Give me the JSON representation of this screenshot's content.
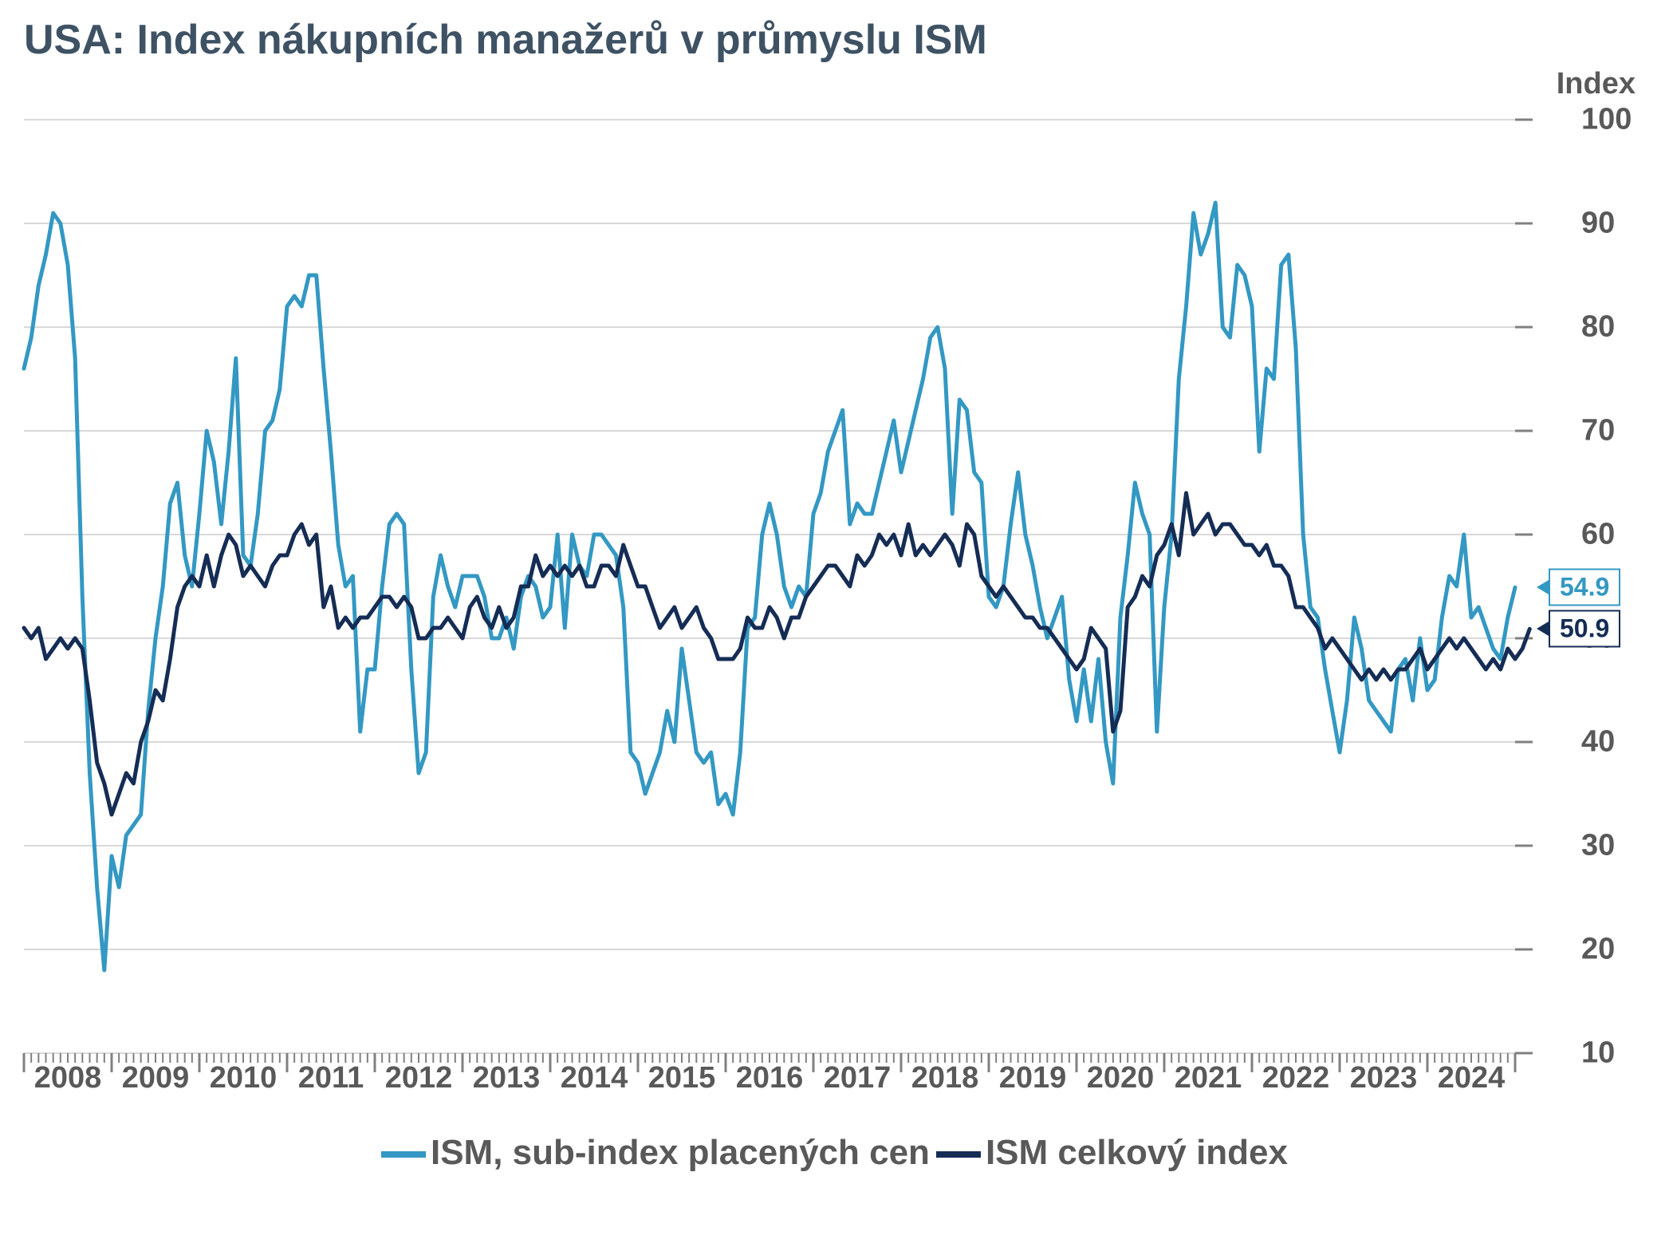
{
  "chart": {
    "type": "line",
    "title": "USA: Index nákupních manažerů v průmyslu ISM",
    "title_fontsize": 52,
    "title_color": "#3e5264",
    "y_axis_title": "Index",
    "label_color": "#595959",
    "label_fontsize": 38,
    "background_color": "#ffffff",
    "grid_color": "#d9d9d9",
    "axis_tick_color": "#808080",
    "ylim": [
      10,
      100
    ],
    "ytick_step": 10,
    "yticks": [
      10,
      20,
      30,
      40,
      50,
      60,
      70,
      80,
      90,
      100
    ],
    "xlim_years": [
      2008,
      2025
    ],
    "xticks": [
      2008,
      2009,
      2010,
      2011,
      2012,
      2013,
      2014,
      2015,
      2016,
      2017,
      2018,
      2019,
      2020,
      2021,
      2022,
      2023,
      2024
    ],
    "months_per_year": 12,
    "line_width": 5,
    "legend": {
      "items": [
        {
          "label": "ISM, sub-index placených cen",
          "color": "#3398c3"
        },
        {
          "label": "ISM celkový index",
          "color": "#152d55"
        }
      ],
      "fontsize": 44
    },
    "end_labels": [
      {
        "series": 0,
        "value": "54.9",
        "color": "#3398c3"
      },
      {
        "series": 1,
        "value": "50.9",
        "color": "#152d55"
      }
    ],
    "series": [
      {
        "name": "ISM, sub-index placených cen",
        "color": "#3398c3",
        "values": [
          76,
          79,
          84,
          87,
          91,
          90,
          86,
          77,
          54,
          37,
          26,
          18,
          29,
          26,
          31,
          32,
          33,
          43,
          50,
          55,
          63,
          65,
          58,
          55,
          62,
          70,
          67,
          61,
          68,
          77,
          58,
          57,
          62,
          70,
          71,
          74,
          82,
          83,
          82,
          85,
          85,
          76,
          68,
          59,
          55,
          56,
          41,
          47,
          47,
          55,
          61,
          62,
          61,
          47,
          37,
          39,
          54,
          58,
          55,
          53,
          56,
          56,
          56,
          54,
          50,
          50,
          52,
          49,
          54,
          56,
          55,
          52,
          53,
          60,
          51,
          60,
          57,
          56,
          60,
          60,
          59,
          58,
          53,
          39,
          38,
          35,
          37,
          39,
          43,
          40,
          49,
          44,
          39,
          38,
          39,
          34,
          35,
          33,
          39,
          51,
          52,
          60,
          63,
          60,
          55,
          53,
          55,
          54,
          62,
          64,
          68,
          70,
          72,
          61,
          63,
          62,
          62,
          65,
          68,
          71,
          66,
          69,
          72,
          75,
          79,
          80,
          76,
          62,
          73,
          72,
          66,
          65,
          54,
          53,
          55,
          61,
          66,
          60,
          57,
          53,
          50,
          52,
          54,
          46,
          42,
          47,
          42,
          48,
          40,
          36,
          52,
          58,
          65,
          62,
          60,
          41,
          53,
          60,
          75,
          82,
          91,
          87,
          89,
          92,
          80,
          79,
          86,
          85,
          82,
          68,
          76,
          75,
          86,
          87,
          78,
          60,
          53,
          52,
          47,
          43,
          39,
          44,
          52,
          49,
          44,
          43,
          42,
          41,
          47,
          48,
          44,
          50,
          45,
          46,
          52,
          56,
          55,
          60,
          52,
          53,
          51,
          49,
          48,
          52,
          54.9
        ]
      },
      {
        "name": "ISM celkový index",
        "color": "#152d55",
        "values": [
          51,
          50,
          51,
          48,
          49,
          50,
          49,
          50,
          49,
          44,
          38,
          36,
          33,
          35,
          37,
          36,
          40,
          42,
          45,
          44,
          48,
          53,
          55,
          56,
          55,
          58,
          55,
          58,
          60,
          59,
          56,
          57,
          56,
          55,
          57,
          58,
          58,
          60,
          61,
          59,
          60,
          53,
          55,
          51,
          52,
          51,
          52,
          52,
          53,
          54,
          54,
          53,
          54,
          53,
          50,
          50,
          51,
          51,
          52,
          51,
          50,
          53,
          54,
          52,
          51,
          53,
          51,
          52,
          55,
          55,
          58,
          56,
          57,
          56,
          57,
          56,
          57,
          55,
          55,
          57,
          57,
          56,
          59,
          57,
          55,
          55,
          53,
          51,
          52,
          53,
          51,
          52,
          53,
          51,
          50,
          48,
          48,
          48,
          49,
          52,
          51,
          51,
          53,
          52,
          50,
          52,
          52,
          54,
          55,
          56,
          57,
          57,
          56,
          55,
          58,
          57,
          58,
          60,
          59,
          60,
          58,
          61,
          58,
          59,
          58,
          59,
          60,
          59,
          57,
          61,
          60,
          56,
          55,
          54,
          55,
          54,
          53,
          52,
          52,
          51,
          51,
          50,
          49,
          48,
          47,
          48,
          51,
          50,
          49,
          41,
          43,
          53,
          54,
          56,
          55,
          58,
          59,
          61,
          58,
          64,
          60,
          61,
          62,
          60,
          61,
          61,
          60,
          59,
          59,
          58,
          59,
          57,
          57,
          56,
          53,
          53,
          52,
          51,
          49,
          50,
          49,
          48,
          47,
          46,
          47,
          46,
          47,
          46,
          47,
          47,
          48,
          49,
          47,
          48,
          49,
          50,
          49,
          50,
          49,
          48,
          47,
          48,
          47,
          49,
          48,
          49,
          50.9
        ]
      }
    ]
  }
}
